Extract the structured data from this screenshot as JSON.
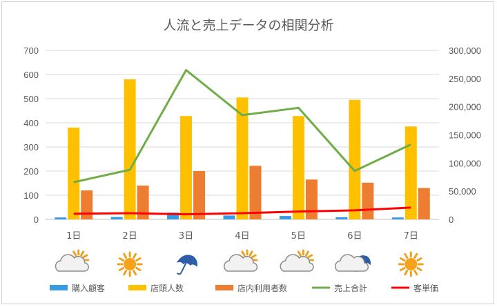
{
  "chart_data": {
    "type": "bar",
    "title": "人流と売上データの相関分析",
    "categories": [
      "1日",
      "2日",
      "3日",
      "4日",
      "5日",
      "6日",
      "7日"
    ],
    "weather_icons": [
      "cloud-sun-icon",
      "sun-icon",
      "umbrella-icon",
      "cloud-sun-icon",
      "cloud-sun-icon",
      "cloud-umbrella-icon",
      "sun-icon"
    ],
    "y_left": {
      "ylim": [
        0,
        700
      ],
      "ticks": [
        "0",
        "100",
        "200",
        "300",
        "400",
        "500",
        "600",
        "700"
      ]
    },
    "y_right": {
      "ylim": [
        0,
        300000
      ],
      "ticks": [
        "0",
        "50,000",
        "100,000",
        "150,000",
        "200,000",
        "250,000",
        "300,000"
      ]
    },
    "grid": true,
    "legend_position": "bottom",
    "series": [
      {
        "name": "購入顧客",
        "type": "bar",
        "axis": "left",
        "color": "#3b9be0",
        "values": [
          8,
          10,
          28,
          16,
          14,
          9,
          8
        ]
      },
      {
        "name": "店頭人数",
        "type": "bar",
        "axis": "left",
        "color": "#ffc000",
        "values": [
          380,
          580,
          428,
          505,
          428,
          495,
          385
        ]
      },
      {
        "name": "店内利用者数",
        "type": "bar",
        "axis": "left",
        "color": "#ed7d31",
        "values": [
          120,
          140,
          200,
          222,
          165,
          152,
          130
        ]
      },
      {
        "name": "売上合計",
        "type": "line",
        "axis": "right",
        "color": "#70ad47",
        "values": [
          66000,
          88000,
          265000,
          185000,
          198000,
          86000,
          133000
        ]
      },
      {
        "name": "客単価",
        "type": "line",
        "axis": "right",
        "color": "#ff0000",
        "values": [
          10000,
          11000,
          9000,
          11000,
          14000,
          16000,
          21000
        ]
      }
    ]
  }
}
